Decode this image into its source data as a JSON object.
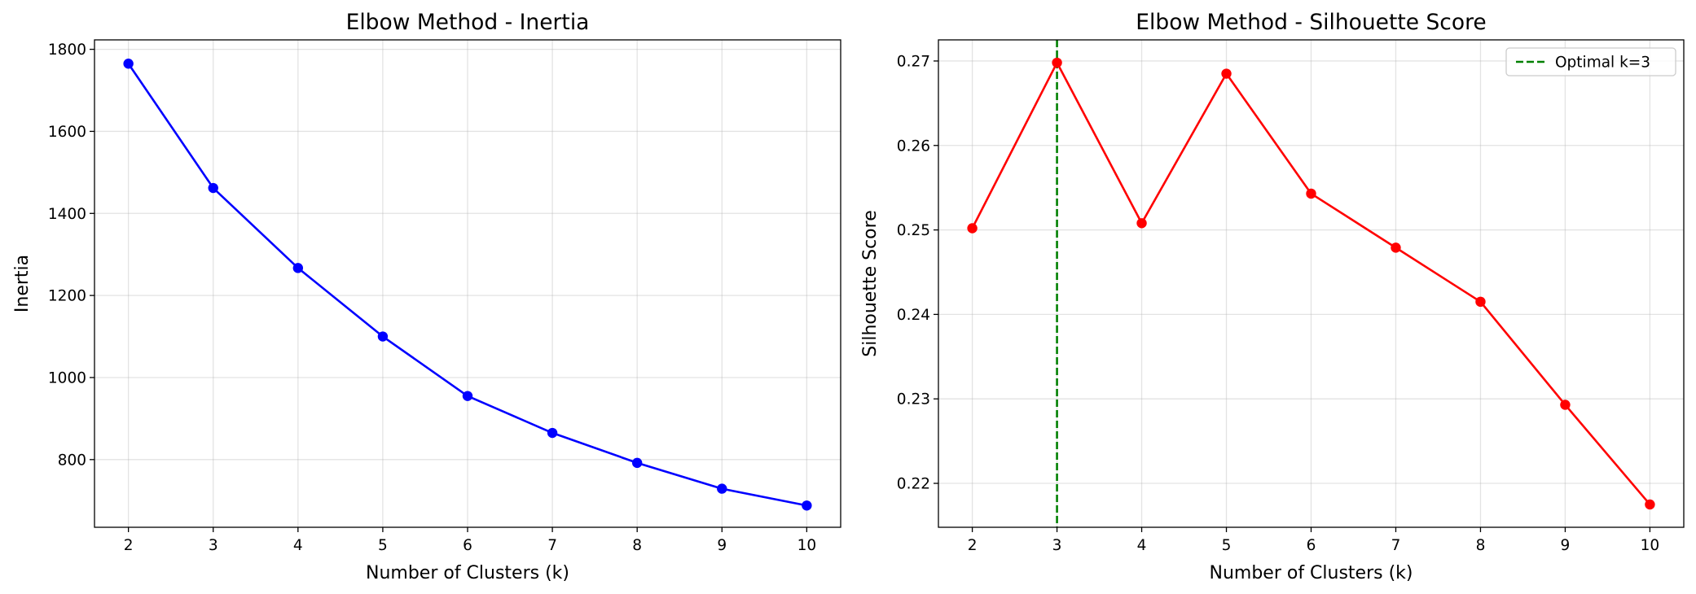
{
  "chart_data": [
    {
      "type": "line",
      "title": "Elbow Method - Inertia",
      "xlabel": "Number of Clusters (k)",
      "ylabel": "Inertia",
      "xlim": [
        1.6,
        10.4
      ],
      "ylim": [
        635,
        1823
      ],
      "xticks": [
        2,
        3,
        4,
        5,
        6,
        7,
        8,
        9,
        10
      ],
      "yticks": [
        800,
        1000,
        1200,
        1400,
        1600,
        1800
      ],
      "grid": true,
      "series": [
        {
          "color": "#0000ff",
          "marker": "circle",
          "x": [
            2,
            3,
            4,
            5,
            6,
            7,
            8,
            9,
            10
          ],
          "y": [
            1765,
            1462,
            1267,
            1100,
            955,
            865,
            792,
            729,
            688
          ]
        }
      ]
    },
    {
      "type": "line",
      "title": "Elbow Method - Silhouette Score",
      "xlabel": "Number of Clusters (k)",
      "ylabel": "Silhouette Score",
      "xlim": [
        1.6,
        10.4
      ],
      "ylim": [
        0.2148,
        0.2725
      ],
      "xticks": [
        2,
        3,
        4,
        5,
        6,
        7,
        8,
        9,
        10
      ],
      "yticks": [
        "0.22",
        "0.23",
        "0.24",
        "0.25",
        "0.26",
        "0.27"
      ],
      "grid": true,
      "legend_position": "top-right",
      "legend": [
        "Optimal k=3"
      ],
      "vline": {
        "x": 3,
        "color": "#008000",
        "style": "dashed",
        "label": "Optimal k=3"
      },
      "series": [
        {
          "color": "#ff0000",
          "marker": "circle",
          "x": [
            2,
            3,
            4,
            5,
            6,
            7,
            8,
            9,
            10
          ],
          "y": [
            0.2502,
            0.2698,
            0.2508,
            0.2685,
            0.2543,
            0.2479,
            0.2415,
            0.2293,
            0.2175
          ]
        }
      ]
    }
  ]
}
